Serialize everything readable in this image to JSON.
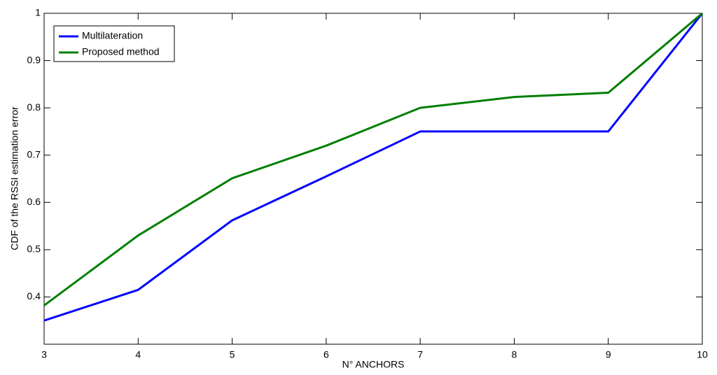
{
  "chart_data": {
    "type": "line",
    "x_label": "N° ANCHORS",
    "y_label": "CDF of the RSSI estimation error",
    "x": [
      3,
      4,
      5,
      6,
      7,
      8,
      9,
      10
    ],
    "series": [
      {
        "name": "Multilateration",
        "color": "#0000ff",
        "values": [
          0.35,
          0.415,
          0.562,
          0.655,
          0.75,
          0.75,
          0.75,
          1
        ]
      },
      {
        "name": "Proposed method",
        "color": "#007f00",
        "values": [
          0.382,
          0.53,
          0.651,
          0.72,
          0.8,
          0.823,
          0.832,
          1
        ]
      }
    ],
    "xlim": [
      3,
      10
    ],
    "xticks": [
      3,
      4,
      5,
      6,
      7,
      8,
      9,
      10
    ],
    "ylim": [
      0.3,
      1
    ],
    "yticks": [
      0.4,
      0.5,
      0.6,
      0.7,
      0.8,
      0.9,
      1
    ],
    "grid": false,
    "legend": "upper left"
  }
}
